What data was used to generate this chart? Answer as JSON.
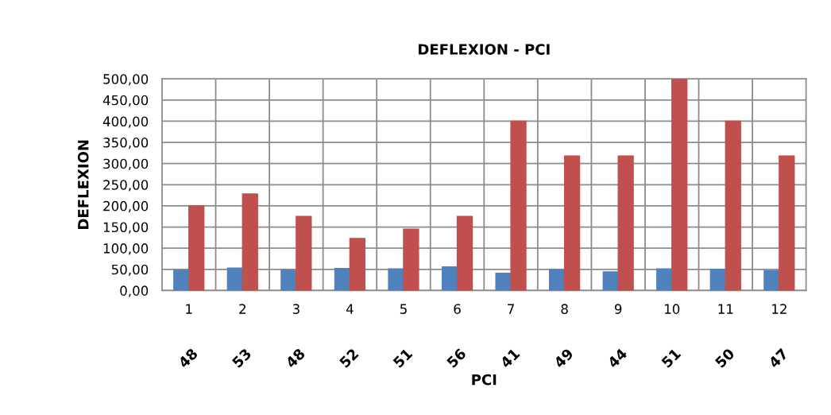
{
  "chart_data": {
    "type": "bar",
    "title": "DEFLEXION - PCI",
    "xlabel": "PCI",
    "ylabel": "DEFLEXION",
    "categories": [
      "1",
      "2",
      "3",
      "4",
      "5",
      "6",
      "7",
      "8",
      "9",
      "10",
      "11",
      "12"
    ],
    "series": [
      {
        "color": "#4f81bd",
        "values": [
          48,
          53,
          48,
          52,
          51,
          56,
          41,
          49,
          44,
          51,
          50,
          47
        ]
      },
      {
        "color": "#c0504d",
        "values": [
          200,
          228,
          175,
          123,
          145,
          175,
          400,
          318,
          318,
          500,
          400,
          318
        ]
      }
    ],
    "ylim": [
      0,
      500
    ],
    "yticks": [
      {
        "value": 0,
        "label": "0,00"
      },
      {
        "value": 50,
        "label": "50,00"
      },
      {
        "value": 100,
        "label": "100,00"
      },
      {
        "value": 150,
        "label": "150,00"
      },
      {
        "value": 200,
        "label": "200,00"
      },
      {
        "value": 250,
        "label": "250,00"
      },
      {
        "value": 300,
        "label": "300,00"
      },
      {
        "value": 350,
        "label": "350,00"
      },
      {
        "value": 400,
        "label": "400,00"
      },
      {
        "value": 450,
        "label": "450,00"
      },
      {
        "value": 500,
        "label": "500,00"
      }
    ],
    "grid": true,
    "annotations": [
      "48",
      "53",
      "48",
      "52",
      "51",
      "56",
      "41",
      "49",
      "44",
      "51",
      "50",
      "47"
    ]
  }
}
